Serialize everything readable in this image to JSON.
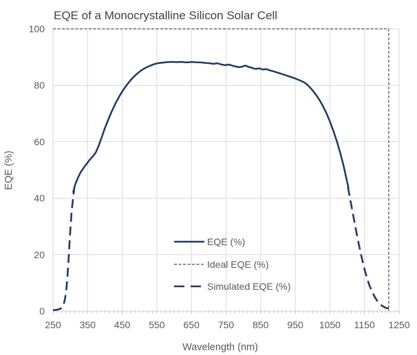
{
  "title": "EQE of a Monocrystalline Silicon Solar Cell",
  "colors": {
    "navy": "#1f3864",
    "ideal_gray": "#7f7f7f",
    "gridline": "#d9d9d9",
    "axis_line": "#d9d9d9",
    "tick_mark": "#bfbfbf",
    "label_text": "#595959",
    "title_text": "#404040",
    "background": "#ffffff"
  },
  "axes": {
    "x": {
      "label": "Wavelength (nm)",
      "min": 250,
      "max": 1250,
      "major_ticks": [
        250,
        350,
        450,
        550,
        650,
        750,
        850,
        950,
        1050,
        1150,
        1250
      ],
      "minor_tick_step": 12.5
    },
    "y": {
      "label": "EQE (%)",
      "min": 0,
      "max": 100,
      "ticks": [
        0,
        20,
        40,
        60,
        80,
        100
      ]
    }
  },
  "legend": {
    "position": "inside lower-center",
    "items": [
      {
        "label": "EQE (%)",
        "style": "solid"
      },
      {
        "label": "Ideal EQE (%)",
        "style": "dash-short"
      },
      {
        "label": "Simulated EQE (%)",
        "style": "dash-long"
      }
    ]
  },
  "chart_data": {
    "type": "line",
    "title": "EQE of a Monocrystalline Silicon Solar Cell",
    "xlabel": "Wavelength (nm)",
    "ylabel": "EQE (%)",
    "xlim": [
      250,
      1250
    ],
    "ylim": [
      0,
      100
    ],
    "grid": true,
    "legend_position": "inside lower-center",
    "series": [
      {
        "name": "EQE (%)",
        "color": "#1f3864",
        "line_style": "solid",
        "width": 2.5,
        "dash": "",
        "legend_dash": "",
        "segments": [
          [
            [
              308,
              42
            ],
            [
              314,
              44.8
            ],
            [
              322,
              47.2
            ],
            [
              330,
              49.2
            ],
            [
              340,
              51
            ],
            [
              350,
              52.6
            ],
            [
              358,
              53.9
            ],
            [
              366,
              54.9
            ],
            [
              374,
              56.3
            ],
            [
              382,
              58.6
            ],
            [
              390,
              61.3
            ],
            [
              400,
              64.8
            ],
            [
              410,
              67.9
            ],
            [
              420,
              70.8
            ],
            [
              432,
              73.9
            ],
            [
              444,
              76.6
            ],
            [
              456,
              78.9
            ],
            [
              468,
              80.9
            ],
            [
              480,
              82.6
            ],
            [
              492,
              84
            ],
            [
              504,
              85.2
            ],
            [
              516,
              86.1
            ],
            [
              528,
              86.8
            ],
            [
              540,
              87.4
            ],
            [
              552,
              87.8
            ],
            [
              566,
              88
            ],
            [
              580,
              88.2
            ],
            [
              594,
              88.3
            ],
            [
              608,
              88.2
            ],
            [
              622,
              88.3
            ],
            [
              636,
              88.1
            ],
            [
              650,
              88.25
            ],
            [
              664,
              88.15
            ],
            [
              678,
              88.1
            ],
            [
              692,
              87.9
            ],
            [
              704,
              87.8
            ],
            [
              714,
              87.6
            ],
            [
              724,
              87.8
            ],
            [
              736,
              87.4
            ],
            [
              748,
              87.1
            ],
            [
              758,
              87.35
            ],
            [
              768,
              86.95
            ],
            [
              778,
              86.65
            ],
            [
              788,
              86.4
            ],
            [
              796,
              86.6
            ],
            [
              806,
              86.95
            ],
            [
              816,
              86.5
            ],
            [
              826,
              86.1
            ],
            [
              836,
              85.8
            ],
            [
              846,
              86
            ],
            [
              856,
              85.6
            ],
            [
              866,
              85.75
            ],
            [
              876,
              85.3
            ],
            [
              886,
              85
            ],
            [
              896,
              84.6
            ],
            [
              906,
              84.2
            ],
            [
              916,
              83.8
            ],
            [
              926,
              83.4
            ],
            [
              936,
              83
            ],
            [
              946,
              82.6
            ],
            [
              956,
              82.1
            ],
            [
              966,
              81.6
            ],
            [
              976,
              81
            ],
            [
              984,
              80.3
            ],
            [
              992,
              79.3
            ],
            [
              1000,
              78.2
            ],
            [
              1010,
              76.6
            ],
            [
              1020,
              74.8
            ],
            [
              1030,
              72.6
            ],
            [
              1040,
              70.1
            ],
            [
              1050,
              67.2
            ],
            [
              1060,
              63.9
            ],
            [
              1070,
              60.2
            ],
            [
              1080,
              56
            ],
            [
              1090,
              51.3
            ],
            [
              1098,
              46.8
            ],
            [
              1104,
              43.5
            ]
          ]
        ]
      },
      {
        "name": "Ideal EQE (%)",
        "color": "#7f7f7f",
        "line_style": "dashed",
        "width": 1.8,
        "dash": "4 2.5",
        "legend_dash": "4 2.5",
        "segments": [
          [
            [
              250,
              100
            ],
            [
              1220,
              100
            ],
            [
              1220,
              0
            ]
          ]
        ]
      },
      {
        "name": "Simulated EQE (%)",
        "color": "#1f3864",
        "line_style": "dashed",
        "width": 2.6,
        "dash": "13 7",
        "legend_dash": "15 9",
        "segments": [
          [
            [
              250,
              0.3
            ],
            [
              258,
              0.4
            ],
            [
              265,
              0.55
            ],
            [
              271,
              0.8
            ],
            [
              276,
              1.3
            ],
            [
              281,
              2.4
            ],
            [
              285,
              4.5
            ],
            [
              289,
              8
            ],
            [
              292,
              12.5
            ],
            [
              295,
              18
            ],
            [
              298,
              24.5
            ],
            [
              301,
              30.5
            ],
            [
              304,
              35.5
            ],
            [
              308,
              40
            ],
            [
              312,
              44
            ]
          ],
          [
            [
              1102,
              44
            ],
            [
              1108,
              40
            ],
            [
              1116,
              34.8
            ],
            [
              1124,
              29.6
            ],
            [
              1132,
              24.6
            ],
            [
              1140,
              20
            ],
            [
              1148,
              15.8
            ],
            [
              1156,
              12.2
            ],
            [
              1164,
              9.2
            ],
            [
              1172,
              6.8
            ],
            [
              1180,
              4.9
            ],
            [
              1188,
              3.4
            ],
            [
              1196,
              2.3
            ],
            [
              1204,
              1.6
            ],
            [
              1212,
              1.1
            ],
            [
              1220,
              0.9
            ],
            [
              1227,
              0.8
            ]
          ]
        ]
      }
    ]
  }
}
